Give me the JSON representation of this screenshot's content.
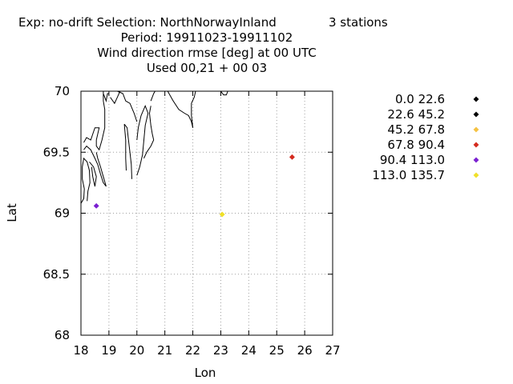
{
  "header": {
    "line1_left": "Exp: no-drift   Selection: NorthNorwayInland",
    "line1_right": "3 stations",
    "line2": "Period: 19911023-19911102",
    "line3": "Wind direction rmse [deg] at  00 UTC",
    "line4": "Used  00,21  + 00 03"
  },
  "chart_data": {
    "type": "scatter",
    "xlabel": "Lon",
    "ylabel": "Lat",
    "xlim": [
      18,
      27
    ],
    "ylim": [
      68,
      70
    ],
    "xticks": [
      "18",
      "19",
      "20",
      "21",
      "22",
      "23",
      "24",
      "25",
      "26",
      "27"
    ],
    "yticks": [
      "68",
      "68.5",
      "69",
      "69.5",
      "70"
    ],
    "grid": true,
    "legend_position": "right",
    "legend": [
      {
        "label": "0.0 22.6",
        "color": "#000000"
      },
      {
        "label": "22.6 45.2",
        "color": "#000000"
      },
      {
        "label": "45.2 67.8",
        "color": "#f5c242"
      },
      {
        "label": "67.8 90.4",
        "color": "#d42a1e"
      },
      {
        "label": "90.4 113.0",
        "color": "#7a1fd1"
      },
      {
        "label": "113.0 135.7",
        "color": "#f0e028"
      }
    ],
    "points": [
      {
        "lon": 18.55,
        "lat": 69.06,
        "bin": 4,
        "color": "#7a1fd1"
      },
      {
        "lon": 23.05,
        "lat": 68.99,
        "bin": 5,
        "color": "#f0e028"
      },
      {
        "lon": 25.55,
        "lat": 69.46,
        "bin": 3,
        "color": "#d42a1e"
      }
    ],
    "coastline": [
      [
        [
          18.0,
          69.08
        ],
        [
          18.1,
          69.12
        ],
        [
          18.12,
          69.2
        ],
        [
          18.05,
          69.28
        ],
        [
          18.05,
          69.38
        ],
        [
          18.1,
          69.45
        ],
        [
          18.22,
          69.42
        ],
        [
          18.3,
          69.35
        ],
        [
          18.32,
          69.25
        ],
        [
          18.25,
          69.18
        ],
        [
          18.22,
          69.1
        ]
      ],
      [
        [
          18.1,
          69.58
        ],
        [
          18.2,
          69.62
        ],
        [
          18.35,
          69.6
        ],
        [
          18.5,
          69.7
        ],
        [
          18.65,
          69.7
        ],
        [
          18.55,
          69.6
        ],
        [
          18.55,
          69.55
        ],
        [
          18.65,
          69.52
        ],
        [
          18.75,
          69.6
        ],
        [
          18.85,
          69.7
        ],
        [
          18.85,
          69.85
        ],
        [
          18.8,
          69.92
        ],
        [
          18.8,
          70.0
        ]
      ],
      [
        [
          18.1,
          69.52
        ],
        [
          18.2,
          69.55
        ],
        [
          18.35,
          69.52
        ],
        [
          18.5,
          69.45
        ],
        [
          18.6,
          69.4
        ],
        [
          18.7,
          69.32
        ],
        [
          18.8,
          69.25
        ],
        [
          18.9,
          69.22
        ],
        [
          18.8,
          69.3
        ],
        [
          18.7,
          69.38
        ],
        [
          18.6,
          69.45
        ],
        [
          18.55,
          69.5
        ]
      ],
      [
        [
          18.3,
          69.42
        ],
        [
          18.45,
          69.38
        ],
        [
          18.55,
          69.3
        ],
        [
          18.5,
          69.22
        ],
        [
          18.42,
          69.3
        ],
        [
          18.38,
          69.38
        ]
      ],
      [
        [
          18.8,
          69.98
        ],
        [
          18.85,
          69.95
        ],
        [
          18.9,
          69.92
        ],
        [
          18.95,
          69.98
        ],
        [
          19.0,
          69.98
        ]
      ],
      [
        [
          19.05,
          69.95
        ],
        [
          19.2,
          69.9
        ],
        [
          19.3,
          69.95
        ],
        [
          19.4,
          70.0
        ]
      ],
      [
        [
          19.3,
          70.0
        ],
        [
          19.5,
          69.98
        ],
        [
          19.6,
          69.92
        ],
        [
          19.75,
          69.9
        ],
        [
          19.9,
          69.82
        ],
        [
          20.0,
          69.75
        ]
      ],
      [
        [
          19.55,
          69.73
        ],
        [
          19.65,
          69.7
        ],
        [
          19.7,
          69.6
        ],
        [
          19.75,
          69.5
        ],
        [
          19.8,
          69.4
        ],
        [
          19.82,
          69.28
        ]
      ],
      [
        [
          19.55,
          69.73
        ],
        [
          19.6,
          69.6
        ],
        [
          19.6,
          69.45
        ],
        [
          19.62,
          69.35
        ]
      ],
      [
        [
          20.0,
          69.31
        ],
        [
          20.1,
          69.38
        ],
        [
          20.2,
          69.48
        ],
        [
          20.25,
          69.6
        ],
        [
          20.3,
          69.72
        ],
        [
          20.4,
          69.82
        ],
        [
          20.3,
          69.88
        ],
        [
          20.15,
          69.8
        ],
        [
          20.05,
          69.7
        ],
        [
          20.0,
          69.6
        ]
      ],
      [
        [
          20.25,
          69.45
        ],
        [
          20.35,
          69.5
        ],
        [
          20.5,
          69.55
        ],
        [
          20.6,
          69.6
        ],
        [
          20.55,
          69.65
        ],
        [
          20.5,
          69.72
        ],
        [
          20.45,
          69.82
        ],
        [
          20.5,
          69.88
        ]
      ],
      [
        [
          20.5,
          69.92
        ],
        [
          20.6,
          69.98
        ],
        [
          20.65,
          70.0
        ]
      ],
      [
        [
          21.1,
          70.0
        ],
        [
          21.3,
          69.92
        ],
        [
          21.5,
          69.85
        ],
        [
          21.7,
          69.82
        ],
        [
          21.85,
          69.8
        ],
        [
          21.95,
          69.75
        ],
        [
          22.0,
          69.7
        ]
      ],
      [
        [
          22.0,
          69.7
        ],
        [
          21.95,
          69.8
        ],
        [
          21.95,
          69.9
        ],
        [
          22.05,
          69.95
        ],
        [
          22.1,
          70.0
        ]
      ],
      [
        [
          23.0,
          70.0
        ],
        [
          23.1,
          69.97
        ],
        [
          23.2,
          69.97
        ],
        [
          23.25,
          70.0
        ]
      ]
    ]
  }
}
